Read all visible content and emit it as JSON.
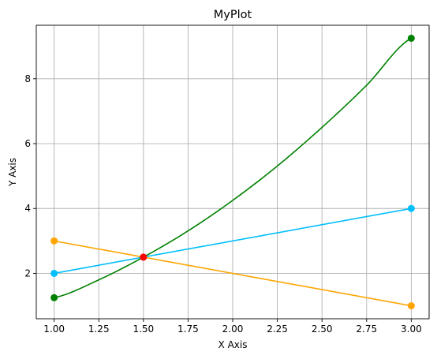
{
  "chart_data": {
    "type": "line",
    "title": "MyPlot",
    "xlabel": "X Axis",
    "ylabel": "Y Axis",
    "xlim": [
      0.9,
      3.1
    ],
    "ylim": [
      0.6,
      9.65
    ],
    "xticks": [
      1.0,
      1.25,
      1.5,
      1.75,
      2.0,
      2.25,
      2.5,
      2.75,
      3.0
    ],
    "xtick_labels": [
      "1.00",
      "1.25",
      "1.50",
      "1.75",
      "2.00",
      "2.25",
      "2.50",
      "2.75",
      "3.00"
    ],
    "yticks": [
      2,
      4,
      6,
      8
    ],
    "ytick_labels": [
      "2",
      "4",
      "6",
      "8"
    ],
    "grid": true,
    "series": [
      {
        "color": "#ffa500",
        "marker": "circle",
        "markers_at": [
          1.0,
          3.0
        ],
        "x": [
          1.0,
          3.0
        ],
        "y": [
          3.0,
          1.0
        ]
      },
      {
        "color": "#00bfff",
        "marker": "circle",
        "markers_at": [
          1.0,
          3.0
        ],
        "x": [
          1.0,
          3.0
        ],
        "y": [
          2.0,
          4.0
        ]
      },
      {
        "color": "#008000",
        "marker": "circle",
        "markers_at": [
          1.0,
          3.0
        ],
        "curve": "quadratic",
        "x": [
          1.0,
          1.25,
          1.5,
          1.75,
          2.0,
          2.25,
          2.5,
          2.75,
          3.0
        ],
        "y": [
          1.25,
          1.8,
          2.5,
          3.31,
          4.25,
          5.31,
          6.5,
          7.8,
          9.25
        ]
      }
    ],
    "annotations": [
      {
        "type": "point",
        "color": "#ff0000",
        "x": 1.5,
        "y": 2.5
      }
    ]
  }
}
